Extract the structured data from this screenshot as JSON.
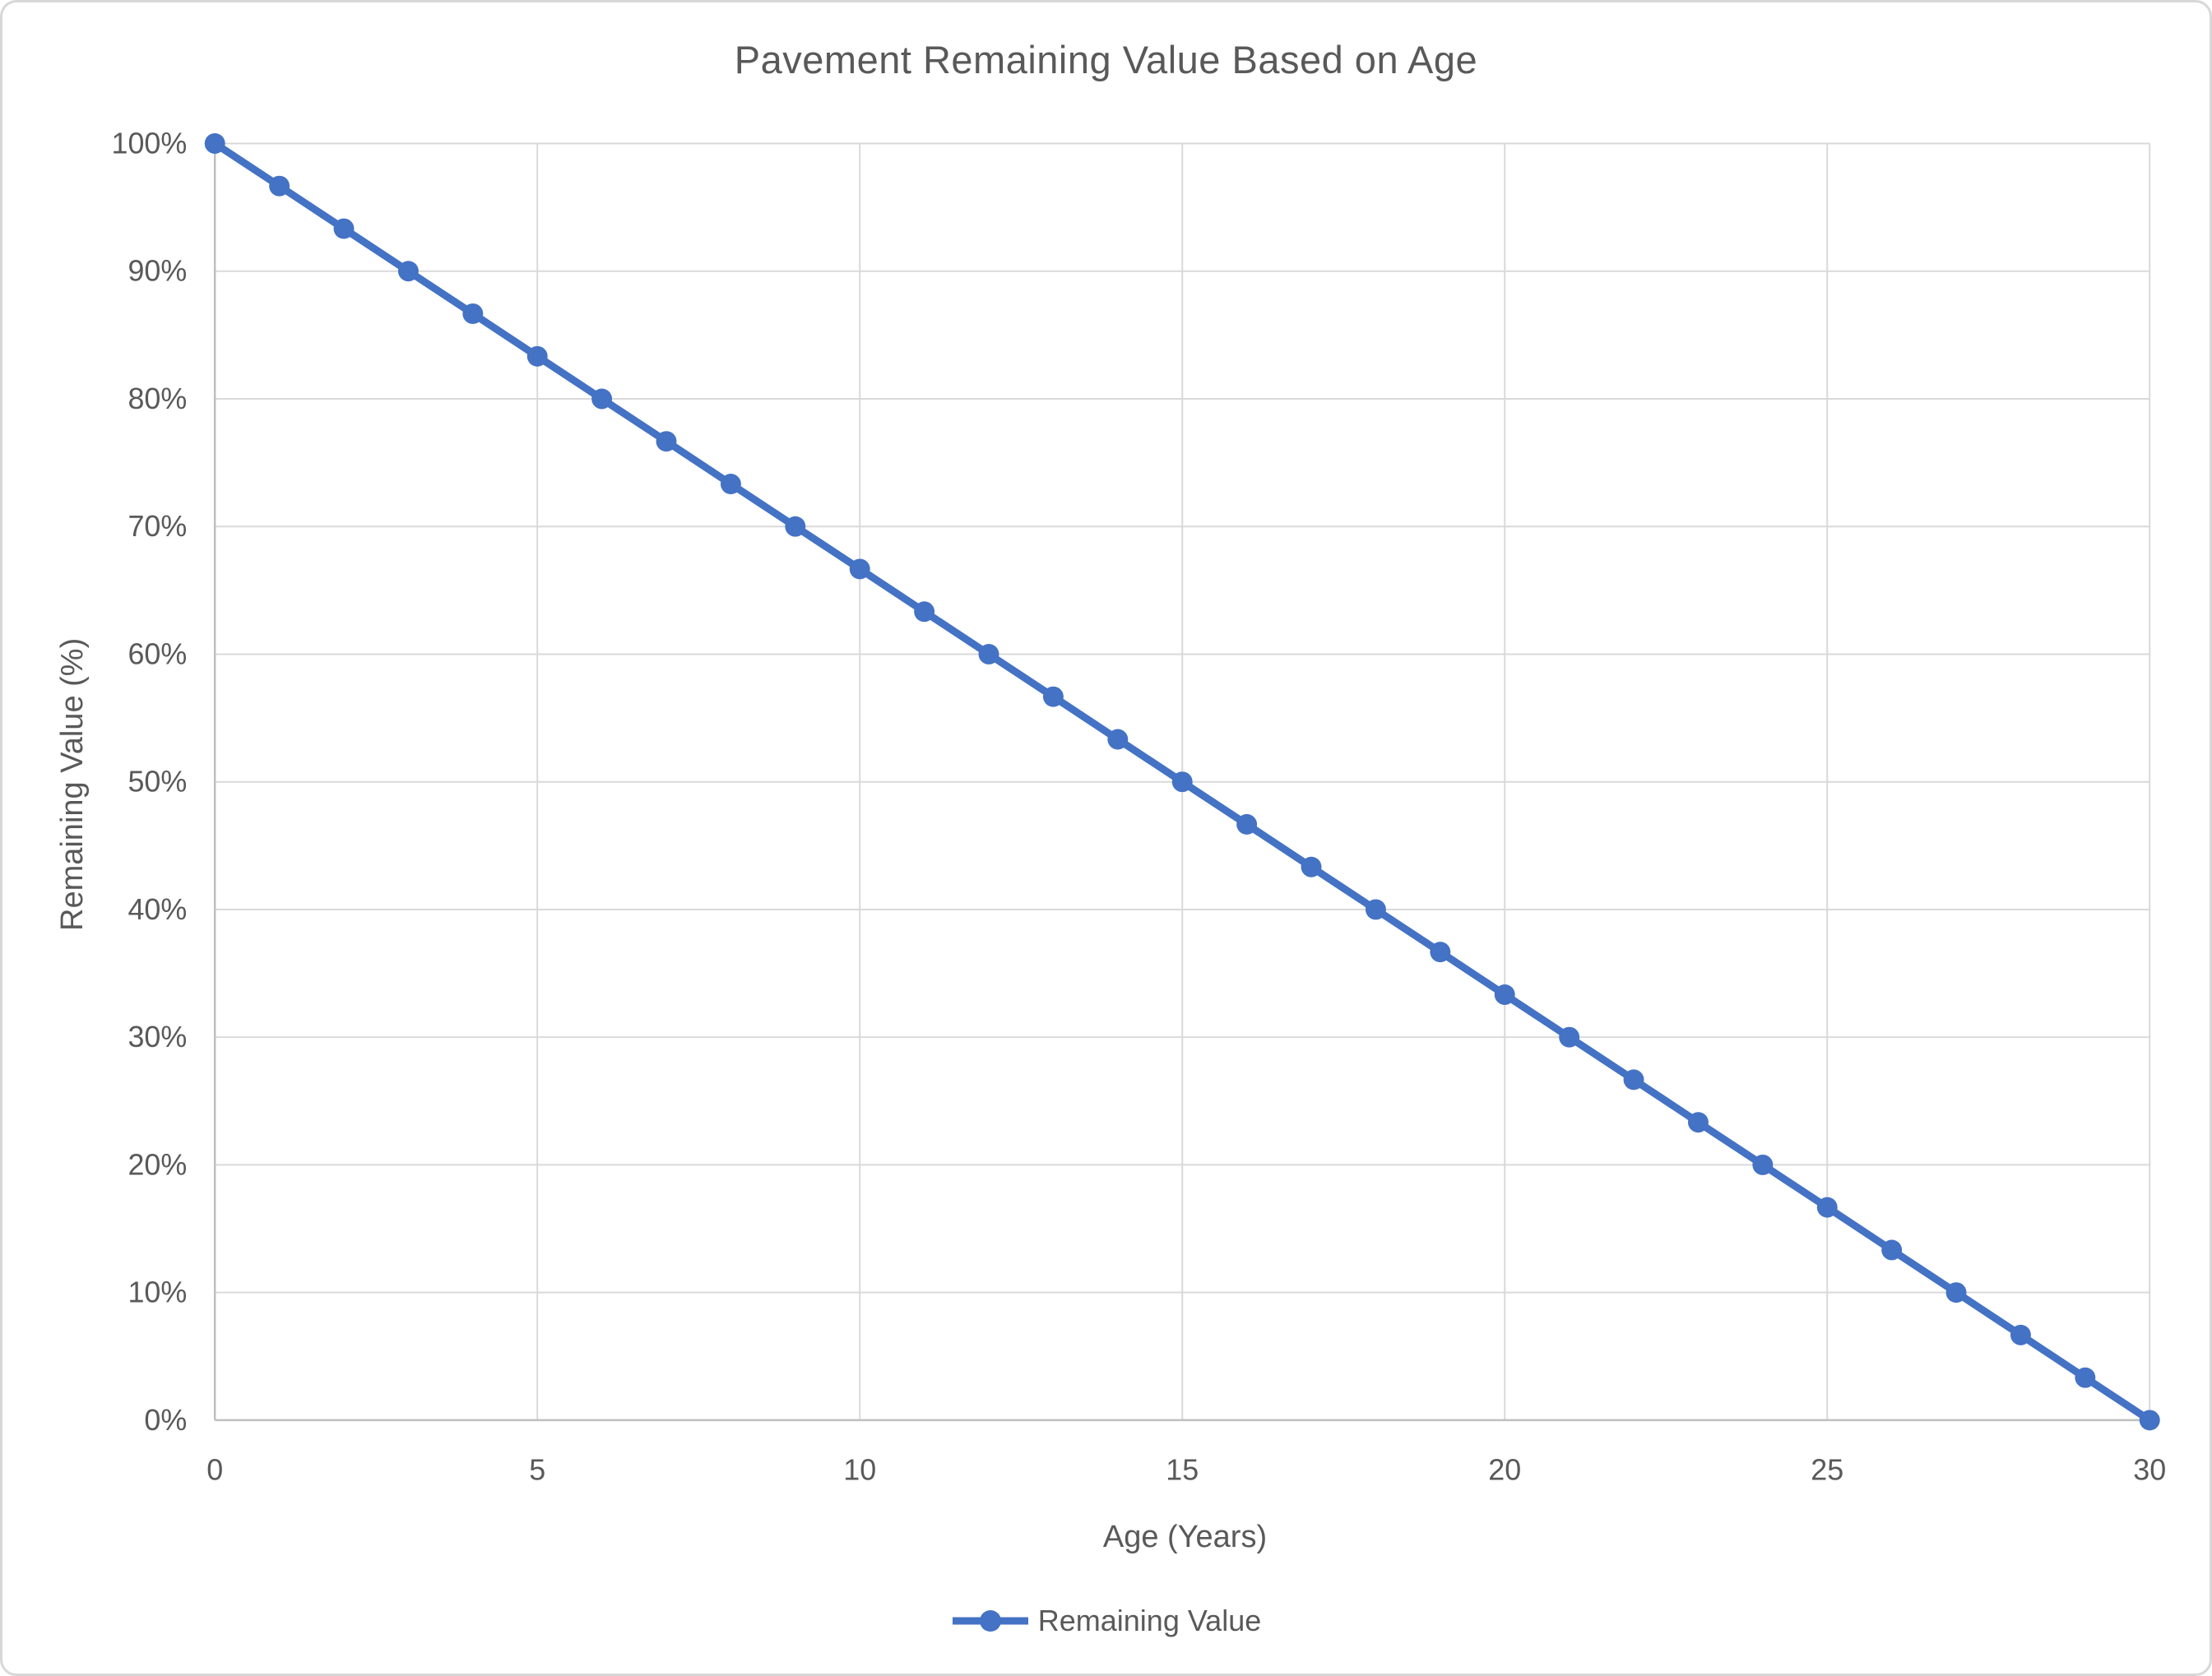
{
  "chart_data": {
    "type": "line",
    "title": "Pavement Remaining Value Based on Age",
    "xlabel": "Age (Years)",
    "ylabel": "Remaining Value (%)",
    "x": [
      0,
      1,
      2,
      3,
      4,
      5,
      6,
      7,
      8,
      9,
      10,
      11,
      12,
      13,
      14,
      15,
      16,
      17,
      18,
      19,
      20,
      21,
      22,
      23,
      24,
      25,
      26,
      27,
      28,
      29,
      30
    ],
    "series": [
      {
        "name": "Remaining Value",
        "color": "#4472C4",
        "values": [
          100,
          96.67,
          93.33,
          90,
          86.67,
          83.33,
          80,
          76.67,
          73.33,
          70,
          66.67,
          63.33,
          60,
          56.67,
          53.33,
          50,
          46.67,
          43.33,
          40,
          36.67,
          33.33,
          30,
          26.67,
          23.33,
          20,
          16.67,
          13.33,
          10,
          6.67,
          3.33,
          0
        ]
      }
    ],
    "xlim": [
      0,
      30
    ],
    "ylim": [
      0,
      100
    ],
    "x_ticks": [
      0,
      5,
      10,
      15,
      20,
      25,
      30
    ],
    "y_ticks": [
      0,
      10,
      20,
      30,
      40,
      50,
      60,
      70,
      80,
      90,
      100
    ],
    "y_tick_labels": [
      "0%",
      "10%",
      "20%",
      "30%",
      "40%",
      "50%",
      "60%",
      "70%",
      "80%",
      "90%",
      "100%"
    ],
    "grid": true,
    "legend_position": "bottom",
    "marker": "circle"
  },
  "colors": {
    "series_blue": "#4472C4",
    "text_gray": "#595959",
    "gridline": "#D9D9D9",
    "axis_line": "#BFBFBF",
    "background": "#FFFFFF",
    "frame_border": "#D7D7D7"
  }
}
